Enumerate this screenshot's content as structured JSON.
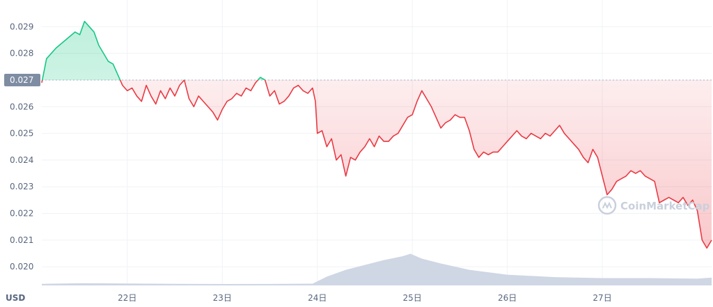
{
  "chart_data": {
    "type": "line",
    "currency_label": "USD",
    "reference_value": 0.027,
    "reference_label": "0.027",
    "y_ticks": [
      "0.029",
      "0.028",
      "0.027",
      "0.026",
      "0.025",
      "0.024",
      "0.023",
      "0.022",
      "0.021",
      "0.020"
    ],
    "y_tick_values": [
      0.029,
      0.028,
      0.027,
      0.026,
      0.025,
      0.024,
      0.023,
      0.022,
      0.021,
      0.02
    ],
    "ylim": [
      0.0193,
      0.03
    ],
    "x_ticks": [
      "22日",
      "23日",
      "24日",
      "25日",
      "26日",
      "27日"
    ],
    "x_tick_days": [
      22,
      23,
      24,
      25,
      26,
      27
    ],
    "xlim": [
      21.1,
      28.15
    ],
    "grid": true,
    "colors": {
      "above": "#16c784",
      "below": "#ea3943",
      "volume": "#cfd6e4",
      "reference_label_bg": "#7f8da3"
    },
    "series": [
      {
        "type": "line",
        "x": [
          21.1,
          21.15,
          21.25,
          21.35,
          21.45,
          21.5,
          21.55,
          21.6,
          21.65,
          21.7,
          21.75,
          21.8,
          21.85,
          21.9,
          21.95,
          22.0,
          22.05,
          22.1,
          22.15,
          22.2,
          22.25,
          22.3,
          22.35,
          22.4,
          22.45,
          22.5,
          22.55,
          22.6,
          22.65,
          22.7,
          22.75,
          22.8,
          22.85,
          22.9,
          22.95,
          23.0,
          23.05,
          23.1,
          23.15,
          23.2,
          23.25,
          23.3,
          23.35,
          23.4,
          23.45,
          23.5,
          23.55,
          23.6,
          23.65,
          23.7,
          23.75,
          23.8,
          23.85,
          23.9,
          23.95,
          23.98,
          24.0,
          24.05,
          24.1,
          24.15,
          24.2,
          24.25,
          24.3,
          24.35,
          24.4,
          24.45,
          24.5,
          24.55,
          24.6,
          24.65,
          24.7,
          24.75,
          24.8,
          24.85,
          24.9,
          24.95,
          25.0,
          25.05,
          25.1,
          25.15,
          25.2,
          25.25,
          25.3,
          25.35,
          25.4,
          25.45,
          25.5,
          25.55,
          25.6,
          25.65,
          25.7,
          25.75,
          25.8,
          25.85,
          25.9,
          25.95,
          26.0,
          26.05,
          26.1,
          26.15,
          26.2,
          26.25,
          26.3,
          26.35,
          26.4,
          26.45,
          26.5,
          26.55,
          26.6,
          26.65,
          26.7,
          26.75,
          26.8,
          26.85,
          26.9,
          26.95,
          27.0,
          27.05,
          27.1,
          27.15,
          27.2,
          27.25,
          27.3,
          27.35,
          27.4,
          27.45,
          27.5,
          27.55,
          27.6,
          27.65,
          27.7,
          27.75,
          27.8,
          27.85,
          27.9,
          27.95,
          28.0,
          28.05,
          28.1,
          28.15
        ],
        "values": [
          0.0269,
          0.0278,
          0.0282,
          0.0285,
          0.0288,
          0.0287,
          0.0292,
          0.029,
          0.0288,
          0.0283,
          0.028,
          0.0277,
          0.0276,
          0.0272,
          0.0268,
          0.0266,
          0.0267,
          0.0264,
          0.0262,
          0.0268,
          0.0264,
          0.0261,
          0.0266,
          0.0263,
          0.0267,
          0.0264,
          0.0268,
          0.027,
          0.0263,
          0.026,
          0.0264,
          0.0262,
          0.026,
          0.0258,
          0.0255,
          0.0259,
          0.0262,
          0.0263,
          0.0265,
          0.0264,
          0.0267,
          0.0266,
          0.0269,
          0.0271,
          0.027,
          0.0264,
          0.0266,
          0.0261,
          0.0262,
          0.0264,
          0.0267,
          0.0268,
          0.0266,
          0.0265,
          0.0267,
          0.0262,
          0.025,
          0.0251,
          0.0245,
          0.0248,
          0.024,
          0.0242,
          0.0234,
          0.0241,
          0.024,
          0.0243,
          0.0245,
          0.0248,
          0.0245,
          0.0249,
          0.0247,
          0.0247,
          0.0249,
          0.025,
          0.0253,
          0.0256,
          0.0257,
          0.0262,
          0.0266,
          0.0263,
          0.026,
          0.0256,
          0.0252,
          0.0254,
          0.0255,
          0.0257,
          0.0256,
          0.0256,
          0.0251,
          0.0244,
          0.0241,
          0.0243,
          0.0242,
          0.0243,
          0.0243,
          0.0245,
          0.0247,
          0.0249,
          0.0251,
          0.0249,
          0.0248,
          0.025,
          0.0249,
          0.0248,
          0.025,
          0.0249,
          0.0251,
          0.0253,
          0.025,
          0.0248,
          0.0246,
          0.0244,
          0.0241,
          0.0239,
          0.0244,
          0.0241,
          0.0234,
          0.0227,
          0.0229,
          0.0232,
          0.0233,
          0.0234,
          0.0236,
          0.0235,
          0.0236,
          0.0234,
          0.0233,
          0.0232,
          0.0224,
          0.0225,
          0.0226,
          0.0225,
          0.0224,
          0.0226,
          0.0223,
          0.0225,
          0.0221,
          0.021,
          0.0207,
          0.021
        ]
      },
      {
        "type": "area",
        "name": "volume",
        "x": [
          21.1,
          21.5,
          22.0,
          22.5,
          23.0,
          23.5,
          23.95,
          24.1,
          24.3,
          24.5,
          24.7,
          24.9,
          24.98,
          25.1,
          25.3,
          25.6,
          26.0,
          26.5,
          27.0,
          27.5,
          28.0,
          28.15
        ],
        "values": [
          0.032,
          0.045,
          0.04,
          0.032,
          0.028,
          0.03,
          0.035,
          0.18,
          0.32,
          0.42,
          0.52,
          0.6,
          0.65,
          0.55,
          0.45,
          0.32,
          0.22,
          0.17,
          0.15,
          0.15,
          0.14,
          0.16
        ]
      }
    ]
  },
  "watermark": {
    "text": "CoinMarketCap",
    "icon": "coinmarketcap-logo-icon"
  }
}
